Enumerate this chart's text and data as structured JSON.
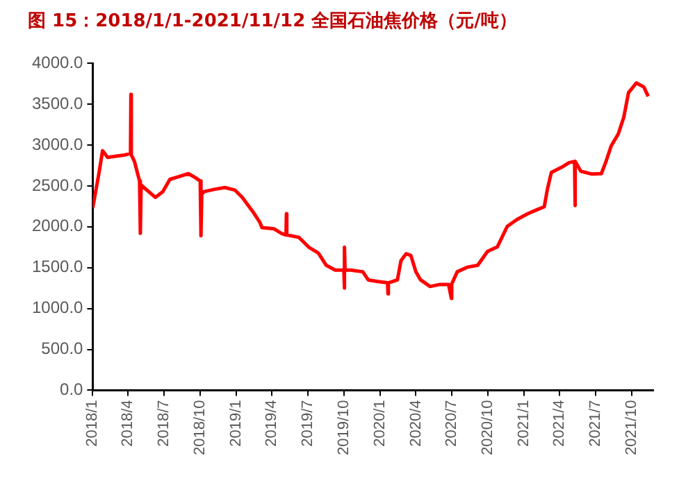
{
  "chart_data": {
    "type": "line",
    "title": "图 15：2018/1/1-2021/11/12 全国石油焦价格（元/吨）",
    "x": [
      "2018-01-01",
      "2018-01-17",
      "2018-01-26",
      "2018-02-08",
      "2018-03-25",
      "2018-04-07",
      "2018-04-08",
      "2018-04-09",
      "2018-04-17",
      "2018-04-30",
      "2018-05-02",
      "2018-05-04",
      "2018-06-09",
      "2018-06-28",
      "2018-07-16",
      "2018-09-01",
      "2018-09-19",
      "2018-10-01",
      "2018-10-03",
      "2018-10-05",
      "2018-10-11",
      "2018-11-08",
      "2018-12-03",
      "2018-12-28",
      "2019-01-16",
      "2019-02-11",
      "2019-03-01",
      "2019-03-07",
      "2019-04-07",
      "2019-04-25",
      "2019-05-07",
      "2019-05-08",
      "2019-05-09",
      "2019-05-20",
      "2019-06-09",
      "2019-07-04",
      "2019-07-28",
      "2019-08-17",
      "2019-09-09",
      "2019-10-01",
      "2019-10-02",
      "2019-10-03",
      "2019-10-04",
      "2019-10-19",
      "2019-11-18",
      "2019-12-02",
      "2019-12-27",
      "2020-01-20",
      "2020-01-21",
      "2020-01-22",
      "2020-02-14",
      "2020-02-23",
      "2020-03-07",
      "2020-03-19",
      "2020-04-01",
      "2020-04-13",
      "2020-05-07",
      "2020-06-01",
      "2020-06-23",
      "2020-06-30",
      "2020-07-01",
      "2020-07-15",
      "2020-08-09",
      "2020-09-05",
      "2020-09-30",
      "2020-10-25",
      "2020-11-19",
      "2020-12-14",
      "2021-01-10",
      "2021-02-03",
      "2021-02-21",
      "2021-03-01",
      "2021-03-11",
      "2021-04-07",
      "2021-04-25",
      "2021-05-09",
      "2021-05-10",
      "2021-05-11",
      "2021-05-25",
      "2021-06-22",
      "2021-07-16",
      "2021-07-28",
      "2021-08-10",
      "2021-08-28",
      "2021-09-11",
      "2021-09-23",
      "2021-10-13",
      "2021-11-01",
      "2021-11-12"
    ],
    "series": [
      {
        "color": "#ff0000",
        "values": [
          2230,
          2660,
          2930,
          2850,
          2880,
          2900,
          3620,
          2880,
          2800,
          2560,
          1920,
          2510,
          2360,
          2430,
          2580,
          2650,
          2600,
          2560,
          1890,
          2400,
          2430,
          2460,
          2480,
          2450,
          2360,
          2190,
          2060,
          1990,
          1975,
          1920,
          1900,
          2160,
          1900,
          1890,
          1870,
          1750,
          1680,
          1530,
          1470,
          1470,
          1250,
          1750,
          1470,
          1470,
          1450,
          1350,
          1330,
          1315,
          1180,
          1315,
          1350,
          1585,
          1670,
          1650,
          1450,
          1350,
          1270,
          1295,
          1295,
          1125,
          1300,
          1450,
          1505,
          1530,
          1700,
          1755,
          2005,
          2090,
          2160,
          2210,
          2245,
          2460,
          2665,
          2730,
          2785,
          2800,
          2260,
          2800,
          2680,
          2645,
          2650,
          2800,
          2990,
          3135,
          3340,
          3640,
          3760,
          3710,
          3595
        ]
      }
    ],
    "xlim": [
      "2018-01-01",
      "2021-11-25"
    ],
    "xticks": [
      {
        "value": "2018-01-01",
        "label": "2018/1"
      },
      {
        "value": "2018-04-01",
        "label": "2018/4"
      },
      {
        "value": "2018-07-01",
        "label": "2018/7"
      },
      {
        "value": "2018-10-01",
        "label": "2018/10"
      },
      {
        "value": "2019-01-01",
        "label": "2019/1"
      },
      {
        "value": "2019-04-01",
        "label": "2019/4"
      },
      {
        "value": "2019-07-01",
        "label": "2019/7"
      },
      {
        "value": "2019-10-01",
        "label": "2019/10"
      },
      {
        "value": "2020-01-01",
        "label": "2020/1"
      },
      {
        "value": "2020-04-01",
        "label": "2020/4"
      },
      {
        "value": "2020-07-01",
        "label": "2020/7"
      },
      {
        "value": "2020-10-01",
        "label": "2020/10"
      },
      {
        "value": "2021-01-01",
        "label": "2021/1"
      },
      {
        "value": "2021-04-01",
        "label": "2021/4"
      },
      {
        "value": "2021-07-01",
        "label": "2021/7"
      },
      {
        "value": "2021-10-01",
        "label": "2021/10"
      }
    ],
    "ylim": [
      0,
      4000
    ],
    "yticks": [
      {
        "value": 0,
        "label": "0.0"
      },
      {
        "value": 500,
        "label": "500.0"
      },
      {
        "value": 1000,
        "label": "1000.0"
      },
      {
        "value": 1500,
        "label": "1500.0"
      },
      {
        "value": 2000,
        "label": "2000.0"
      },
      {
        "value": 2500,
        "label": "2500.0"
      },
      {
        "value": 3000,
        "label": "3000.0"
      },
      {
        "value": 3500,
        "label": "3500.0"
      },
      {
        "value": 4000,
        "label": "4000.0"
      }
    ],
    "grid": false,
    "legend": false,
    "marker": "none",
    "line_style": "solid"
  }
}
